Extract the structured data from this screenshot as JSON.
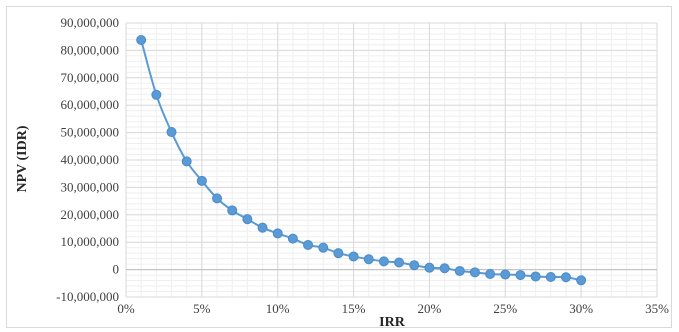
{
  "chart_data": {
    "type": "line",
    "title": "",
    "xlabel": "IRR",
    "ylabel": "NPV (IDR)",
    "xlim": [
      0,
      35
    ],
    "ylim": [
      -10000000,
      90000000
    ],
    "x_ticks": [
      0,
      5,
      10,
      15,
      20,
      25,
      30,
      35
    ],
    "x_tick_labels": [
      "0%",
      "5%",
      "10%",
      "15%",
      "20%",
      "25%",
      "30%",
      "35%"
    ],
    "y_ticks": [
      -10000000,
      0,
      10000000,
      20000000,
      30000000,
      40000000,
      50000000,
      60000000,
      70000000,
      80000000,
      90000000
    ],
    "y_tick_labels": [
      "-10,000,000",
      "0",
      "10,000,000",
      "20,000,000",
      "30,000,000",
      "40,000,000",
      "50,000,000",
      "60,000,000",
      "70,000,000",
      "80,000,000",
      "90,000,000"
    ],
    "grid": true,
    "series": [
      {
        "color": "#5b9bd5",
        "x": [
          1,
          2,
          3,
          4,
          5,
          6,
          7,
          8,
          9,
          10,
          11,
          12,
          13,
          14,
          15,
          16,
          17,
          18,
          19,
          20,
          21,
          22,
          23,
          24,
          25,
          26,
          27,
          28,
          29,
          30
        ],
        "y": [
          83800000,
          63800000,
          50200000,
          39500000,
          32400000,
          26000000,
          21600000,
          18400000,
          15300000,
          13200000,
          11300000,
          9000000,
          8000000,
          6000000,
          4800000,
          3800000,
          3000000,
          2600000,
          1600000,
          700000,
          500000,
          -500000,
          -1000000,
          -1600000,
          -1800000,
          -2000000,
          -2500000,
          -2700000,
          -2800000,
          -3900000
        ]
      }
    ]
  }
}
